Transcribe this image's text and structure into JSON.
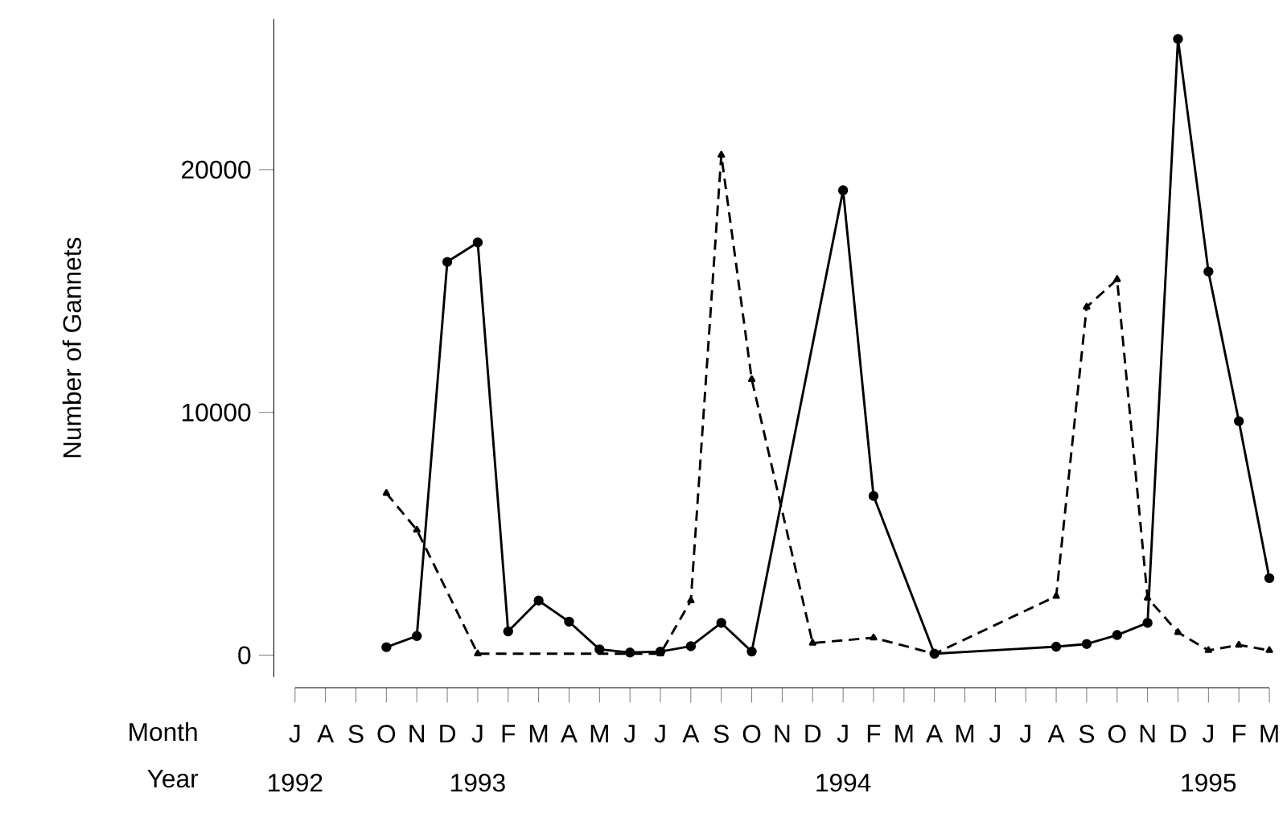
{
  "chart_data": {
    "type": "line",
    "xlabel": "Month",
    "x2label": "Year",
    "ylabel": "Number of Gannets",
    "categories": [
      "J",
      "A",
      "S",
      "O",
      "N",
      "D",
      "J",
      "F",
      "M",
      "A",
      "M",
      "J",
      "J",
      "A",
      "S",
      "O",
      "N",
      "D",
      "J",
      "F",
      "M",
      "A",
      "M",
      "J",
      "J",
      "A",
      "S",
      "O",
      "N",
      "D",
      "J",
      "F",
      "M"
    ],
    "ylim": [
      -900,
      26200
    ],
    "yticks": [
      0,
      10000,
      20000
    ],
    "x2lim": [
      1992.5,
      1995.1667
    ],
    "x2ticks": [
      {
        "value": 1992.5,
        "label": "1992"
      },
      1993,
      1994,
      1995
    ],
    "series": [
      {
        "color": "#000000",
        "line_style": "solid",
        "marker": "circle",
        "values": [
          null,
          null,
          null,
          330,
          790,
          16200,
          17000,
          980,
          2250,
          1380,
          240,
          110,
          150,
          370,
          1330,
          150,
          null,
          null,
          19150,
          6560,
          null,
          60,
          null,
          null,
          null,
          350,
          460,
          830,
          1330,
          25380,
          15800,
          9640,
          3170
        ]
      },
      {
        "color": "#000000",
        "line_style": "dashed",
        "marker": "triangle",
        "values": [
          null,
          null,
          null,
          6670,
          5160,
          null,
          60,
          null,
          null,
          null,
          null,
          null,
          60,
          2250,
          20600,
          11360,
          null,
          500,
          null,
          720,
          null,
          60,
          null,
          null,
          null,
          2430,
          14340,
          15480,
          2360,
          940,
          200,
          420,
          200
        ]
      }
    ]
  }
}
